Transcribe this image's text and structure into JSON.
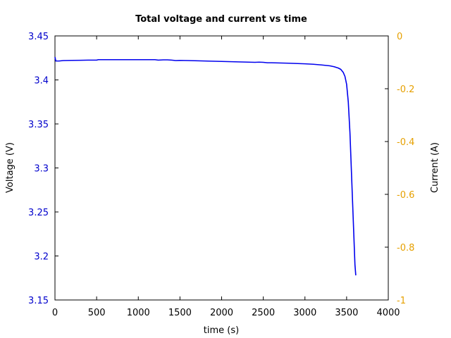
{
  "chart_data": {
    "type": "line",
    "title": "Total voltage and current vs time",
    "xlabel": "time (s)",
    "ylabel": "Voltage (V)",
    "y2label": "Current (A)",
    "xlim": [
      0,
      4000
    ],
    "ylim": [
      3.15,
      3.45
    ],
    "y2lim": [
      -1,
      0
    ],
    "xticks": [
      "0",
      "500",
      "1000",
      "1500",
      "2000",
      "2500",
      "3000",
      "3500",
      "4000"
    ],
    "yticks": [
      "3.15",
      "3.2",
      "3.25",
      "3.3",
      "3.35",
      "3.4",
      "3.45"
    ],
    "y2ticks": [
      "-1",
      "-0.8",
      "-0.6",
      "-0.4",
      "-0.2",
      "0"
    ],
    "grid": false,
    "colors": {
      "voltage": "#0000ee",
      "left_axis_text": "#0000cc",
      "right_axis_text": "#e6a000",
      "axes": "#000000"
    },
    "series": [
      {
        "axis": "left",
        "color": "#0000ee",
        "x": [
          0,
          10,
          50,
          100,
          200,
          300,
          400,
          500,
          520,
          600,
          800,
          1000,
          1200,
          1240,
          1300,
          1350,
          1400,
          1450,
          1500,
          1600,
          1800,
          2000,
          2200,
          2400,
          2450,
          2500,
          2550,
          2600,
          2800,
          3000,
          3100,
          3200,
          3300,
          3350,
          3400,
          3430,
          3460,
          3480,
          3500,
          3520,
          3540,
          3560,
          3580,
          3600,
          3610
        ],
        "y": [
          3.426,
          3.4215,
          3.4215,
          3.422,
          3.4222,
          3.4223,
          3.4225,
          3.4225,
          3.423,
          3.423,
          3.423,
          3.423,
          3.423,
          3.4225,
          3.4228,
          3.4228,
          3.4225,
          3.422,
          3.4222,
          3.422,
          3.4215,
          3.421,
          3.4205,
          3.42,
          3.4202,
          3.42,
          3.4195,
          3.4195,
          3.419,
          3.4183,
          3.4178,
          3.417,
          3.416,
          3.415,
          3.4135,
          3.412,
          3.4085,
          3.404,
          3.395,
          3.375,
          3.34,
          3.29,
          3.24,
          3.19,
          3.178
        ]
      }
    ]
  }
}
